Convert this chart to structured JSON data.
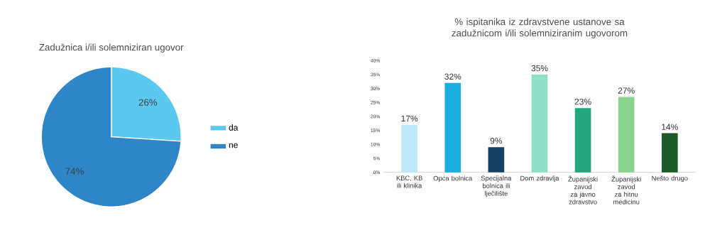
{
  "chart_data": [
    {
      "type": "pie",
      "title": "Zadužnica i/ili solemniziran ugovor",
      "categories": [
        "da",
        "ne"
      ],
      "values": [
        26,
        74
      ],
      "colors": [
        "#5bc8ef",
        "#2e86c8"
      ],
      "value_labels": [
        "26%",
        "74%"
      ],
      "legend": "right"
    },
    {
      "type": "bar",
      "title": "% ispitanika iz zdravstvene ustanove sa zadužnicom i/ili solemniziranim ugovorom",
      "categories": [
        "KBC, KB ili klinika",
        "Opća bolnica",
        "Specijalna bolnica ili lječilište",
        "Dom zdravlja",
        "Županijski zavod za javno zdravstvo",
        "Županijski zavod za hitnu medicinu",
        "Nešto drugo"
      ],
      "values": [
        17,
        32,
        9,
        35,
        23,
        27,
        14
      ],
      "colors": [
        "#bfe7f7",
        "#1aaee0",
        "#16405f",
        "#8fe0c6",
        "#24a57c",
        "#8ad28e",
        "#1e5a2a"
      ],
      "value_labels": [
        "17%",
        "32%",
        "9%",
        "35%",
        "23%",
        "27%",
        "14%"
      ],
      "ylim": [
        0,
        40
      ],
      "yticks": [
        {
          "value": 0,
          "label": "0%"
        },
        {
          "value": 5,
          "label": "5%"
        },
        {
          "value": 10,
          "label": "10%"
        },
        {
          "value": 15,
          "label": "15%"
        },
        {
          "value": 20,
          "label": "20%"
        },
        {
          "value": 25,
          "label": "25%"
        },
        {
          "value": 30,
          "label": "30%"
        },
        {
          "value": 35,
          "label": "35%"
        },
        {
          "value": 40,
          "label": "40%"
        }
      ]
    }
  ]
}
